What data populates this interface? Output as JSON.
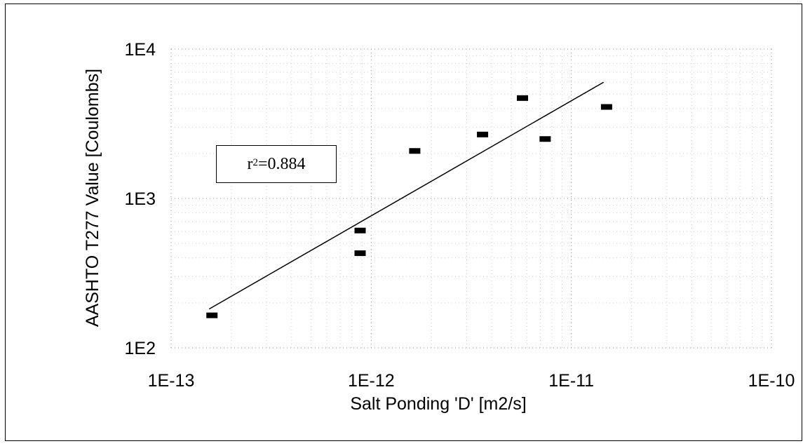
{
  "chart_data": {
    "type": "scatter",
    "title": "",
    "xlabel": "Salt Ponding 'D' [m2/s]",
    "ylabel": "AASHTO T277 Value [Coulombs]",
    "x_scale": "log",
    "y_scale": "log",
    "xlim": [
      1e-13,
      1e-10
    ],
    "ylim": [
      100,
      10000
    ],
    "x_ticks": [
      {
        "value": 1e-13,
        "label": "1E-13"
      },
      {
        "value": 1e-12,
        "label": "1E-12"
      },
      {
        "value": 1e-11,
        "label": "1E-11"
      },
      {
        "value": 1e-10,
        "label": "1E-10"
      }
    ],
    "y_ticks": [
      {
        "value": 100,
        "label": "1E2"
      },
      {
        "value": 1000,
        "label": "1E3"
      },
      {
        "value": 10000,
        "label": "1E4"
      }
    ],
    "grid": true,
    "points": [
      {
        "x": 1.6e-13,
        "y": 165
      },
      {
        "x": 8.8e-13,
        "y": 610
      },
      {
        "x": 8.8e-13,
        "y": 430
      },
      {
        "x": 1.65e-12,
        "y": 2080
      },
      {
        "x": 3.6e-12,
        "y": 2680
      },
      {
        "x": 5.7e-12,
        "y": 4700
      },
      {
        "x": 7.4e-12,
        "y": 2500
      },
      {
        "x": 1.5e-11,
        "y": 4100
      }
    ],
    "trendline": {
      "x": [
        1.55e-13,
        1.45e-11
      ],
      "y": [
        182,
        6000
      ]
    },
    "annotation": {
      "r_prefix": "r",
      "r_exponent": "2",
      "r_value": "=0.884"
    }
  }
}
